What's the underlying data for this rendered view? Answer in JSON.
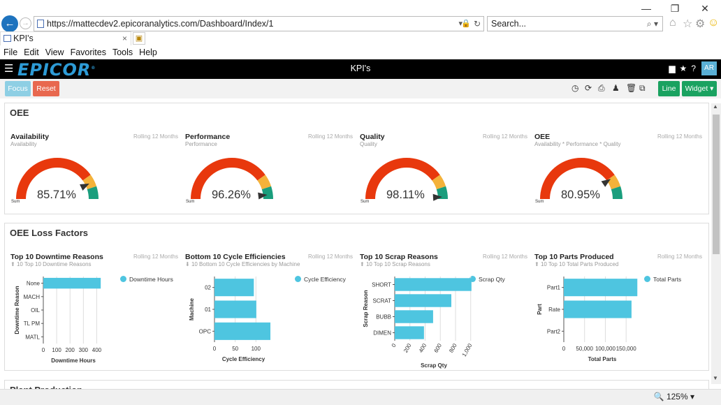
{
  "browser": {
    "url": "https://mattecdev2.epicoranalytics.com/Dashboard/Index/1",
    "search_placeholder": "Search...",
    "tab_title": "KPI's",
    "min": "—",
    "restore": "❐",
    "close": "✕",
    "back": "←",
    "fwd": "→",
    "tabclose": "×"
  },
  "menu": [
    "File",
    "Edit",
    "View",
    "Favorites",
    "Tools",
    "Help"
  ],
  "app": {
    "logo": "EPICOR",
    "title": "KPI's",
    "avatar": "AR"
  },
  "toolbar": {
    "focus": "Focus",
    "reset": "Reset",
    "line": "Line",
    "widget": "Widget ▾"
  },
  "sections": {
    "oee": "OEE",
    "loss": "OEE Loss Factors",
    "plant": "Plant Production"
  },
  "gauges": [
    {
      "title": "Availability",
      "sub": "Availability",
      "roll": "Rolling 12 Months",
      "value": "85.71%",
      "sum": "Sum",
      "level": 0.8571
    },
    {
      "title": "Performance",
      "sub": "Performance",
      "roll": "Rolling 12 Months",
      "value": "96.26%",
      "sum": "Sum",
      "level": 0.9626
    },
    {
      "title": "Quality",
      "sub": "Quality",
      "roll": "Rolling 12 Months",
      "value": "98.11%",
      "sum": "Sum",
      "level": 0.9811
    },
    {
      "title": "OEE",
      "sub": "Availability * Performance * Quality",
      "roll": "Rolling 12 Months",
      "value": "80.95%",
      "sum": "Sum",
      "level": 0.8095
    }
  ],
  "chart_data": [
    {
      "type": "bar",
      "title": "Top 10 Downtime Reasons",
      "subtitle": "10  Top 10 Downtime Reasons",
      "roll": "Rolling 12 Months",
      "legend": "Downtime Hours",
      "categories": [
        "None",
        "MACH",
        "OIL",
        "TL PM",
        "MATL"
      ],
      "values": [
        430,
        0,
        0,
        0,
        0
      ],
      "xlabel": "Downtime Hours",
      "ylabel": "Downtime Reason",
      "xlim": [
        0,
        450
      ],
      "xticks": [
        "0",
        "100",
        "200",
        "300",
        "400"
      ],
      "tickvals": [
        0,
        100,
        200,
        300,
        400
      ],
      "rotate": false
    },
    {
      "type": "bar",
      "title": "Bottom 10 Cycle Efficiencies",
      "subtitle": "10  Bottom 10 Cycle Efficiencies by Machine",
      "roll": "Rolling 12 Months",
      "legend": "Cycle Efficiency",
      "categories": [
        "02",
        "01",
        "OPC"
      ],
      "values": [
        95,
        101,
        135
      ],
      "xlabel": "Cycle Efficiency",
      "ylabel": "Machine",
      "xlim": [
        0,
        140
      ],
      "xticks": [
        "0",
        "50",
        "100"
      ],
      "tickvals": [
        0,
        50,
        100
      ],
      "rotate": false
    },
    {
      "type": "bar",
      "title": "Top 10 Scrap Reasons",
      "subtitle": "10  Top 10 Scrap Reasons",
      "roll": "Rolling 12 Months",
      "legend": "Scrap Qty",
      "categories": [
        "SHORT",
        "SCRAT",
        "BUBB",
        "DIMEN"
      ],
      "values": [
        1010,
        745,
        505,
        385
      ],
      "xlabel": "Scrap Qty",
      "ylabel": "Scrap Reason",
      "xlim": [
        0,
        1030
      ],
      "xticks": [
        "0",
        "200",
        "400",
        "600",
        "800",
        "1,000"
      ],
      "tickvals": [
        0,
        200,
        400,
        600,
        800,
        1000
      ],
      "rotate": true
    },
    {
      "type": "bar",
      "title": "Top 10 Parts Produced",
      "subtitle": "10  Top 10 Total Parts Produced",
      "roll": "Rolling 12 Months",
      "legend": "Total Parts",
      "categories": [
        "Part1",
        "Rate",
        "Part2"
      ],
      "values": [
        177000,
        163000,
        0
      ],
      "xlabel": "Total Parts",
      "ylabel": "Part",
      "xlim": [
        0,
        185000
      ],
      "xticks": [
        "0",
        "50,000",
        "100,000",
        "150,000"
      ],
      "tickvals": [
        0,
        50000,
        100000,
        150000
      ],
      "rotate": false
    }
  ],
  "status": {
    "zoom": "125%"
  }
}
